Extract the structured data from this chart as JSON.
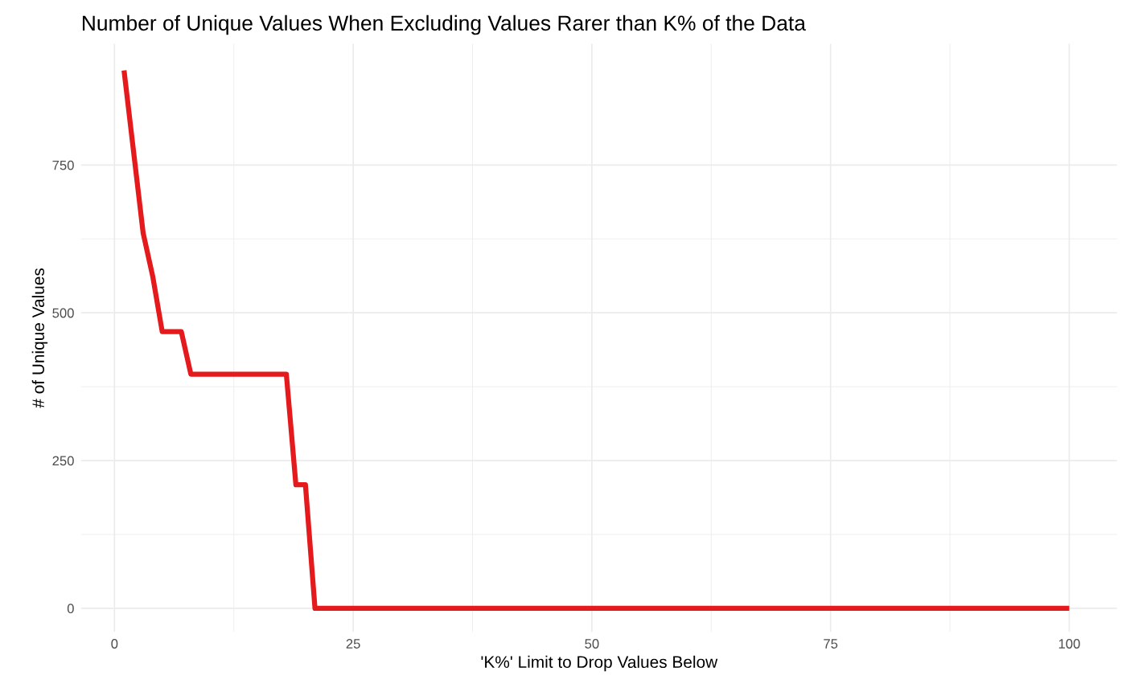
{
  "chart_data": {
    "type": "line",
    "title": "Number of Unique Values When Excluding Values Rarer than K% of the Data",
    "xlabel": "'K%' Limit to Drop Values Below",
    "ylabel": "# of Unique Values",
    "x": [
      1,
      3,
      4,
      5,
      7,
      8,
      18,
      19,
      20,
      21,
      100
    ],
    "series": [
      {
        "color": "#e41a1c",
        "values": [
          910,
          635,
          562,
          468,
          468,
          396,
          396,
          209,
          209,
          0,
          0
        ]
      }
    ],
    "xlim": [
      -3.5,
      105
    ],
    "ylim": [
      -40,
      955
    ],
    "xticks": [
      0,
      25,
      50,
      75,
      100
    ],
    "yticks": [
      0,
      250,
      500,
      750
    ],
    "grid": true,
    "marker": "none",
    "line_style": "solid"
  }
}
